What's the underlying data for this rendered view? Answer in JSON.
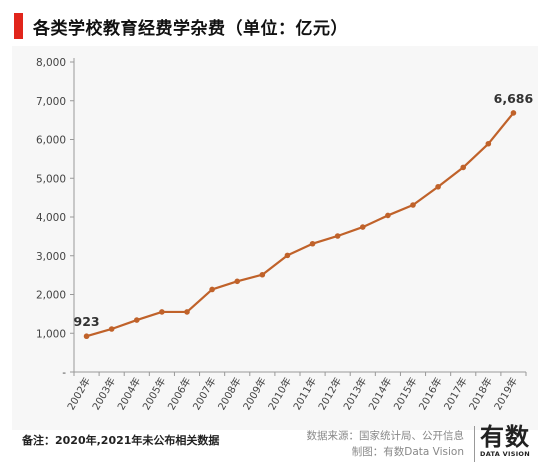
{
  "header": {
    "title": "各类学校教育经费学杂费（单位：亿元）"
  },
  "footer": {
    "note": "备注：2020年,2021年未公布相关数据",
    "source_line1": "数据来源：国家统计局、公开信息",
    "source_line2": "制图：有数Data Vision"
  },
  "logo": {
    "main": "有数",
    "sub": "DATA VISION"
  },
  "colors": {
    "accent": "#e1251b",
    "line": "#c0622a",
    "panel": "#f7f7f7"
  },
  "chart_data": {
    "type": "line",
    "title": "各类学校教育经费学杂费（单位：亿元）",
    "xlabel": "",
    "ylabel": "",
    "categories": [
      "2002年",
      "2003年",
      "2004年",
      "2005年",
      "2006年",
      "2007年",
      "2008年",
      "2009年",
      "2010年",
      "2011年",
      "2012年",
      "2013年",
      "2014年",
      "2015年",
      "2016年",
      "2017年",
      "2018年",
      "2019年"
    ],
    "values": [
      923,
      1110,
      1340,
      1550,
      1550,
      2130,
      2340,
      2510,
      3010,
      3310,
      3510,
      3740,
      4040,
      4310,
      4780,
      5280,
      5890,
      6686
    ],
    "point_labels": [
      {
        "index": 0,
        "text": "923"
      },
      {
        "index": 17,
        "text": "6,686"
      }
    ],
    "ylim": [
      0,
      8000
    ],
    "yticks": [
      0,
      1000,
      2000,
      3000,
      4000,
      5000,
      6000,
      7000,
      8000
    ],
    "ytick_labels": [
      "-",
      "1,000",
      "2,000",
      "3,000",
      "4,000",
      "5,000",
      "6,000",
      "7,000",
      "8,000"
    ],
    "grid": false
  }
}
